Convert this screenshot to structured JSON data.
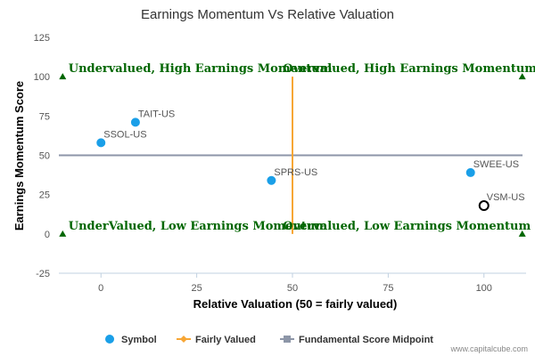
{
  "chart_data": {
    "type": "scatter",
    "title": "Earnings Momentum Vs Relative Valuation",
    "xlabel": "Relative Valuation (50 = fairly valued)",
    "ylabel": "Earnings Momentum Score",
    "xlim": [
      -11,
      111
    ],
    "ylim": [
      -25,
      125
    ],
    "x_ticks": [
      0,
      25,
      50,
      75,
      100
    ],
    "y_ticks": [
      -25,
      0,
      25,
      50,
      75,
      100,
      125
    ],
    "grid": false,
    "legend_position": "bottom",
    "points": [
      {
        "label": "TAIT-US",
        "x": 9,
        "y": 71,
        "style": "filled",
        "label_side": "right"
      },
      {
        "label": "SSOL-US",
        "x": 0,
        "y": 58,
        "style": "filled",
        "label_side": "right"
      },
      {
        "label": "SPRS-US",
        "x": 44.5,
        "y": 34,
        "style": "filled",
        "label_side": "right"
      },
      {
        "label": "SWEE-US",
        "x": 96.5,
        "y": 39,
        "style": "filled",
        "label_side": "right"
      },
      {
        "label": "VSM-US",
        "x": 100,
        "y": 18,
        "style": "hollow",
        "label_side": "right"
      }
    ],
    "fairly_valued_line": {
      "x": 50,
      "y_range": [
        0,
        100
      ]
    },
    "midpoint_line": {
      "y": 50
    },
    "quadrant_labels": {
      "top_left": "Undervalued, High Earnings Momentum",
      "top_right": "Overvalued, High Earnings Momentum",
      "bottom_left": "UnderValued, Low Earnings Momentum",
      "bottom_right": "Overvalued, Low Earnings Momentum"
    },
    "corner_markers": [
      {
        "x": -10,
        "y": 100
      },
      {
        "x": 110,
        "y": 100
      },
      {
        "x": -10,
        "y": 0
      },
      {
        "x": 110,
        "y": 0
      }
    ],
    "legend": [
      {
        "name": "Symbol",
        "kind": "dot"
      },
      {
        "name": "Fairly Valued",
        "kind": "line-diamond"
      },
      {
        "name": "Fundamental Score Midpoint",
        "kind": "line-square"
      }
    ],
    "colors": {
      "symbol": "#1a9fe8",
      "fairly_valued": "#f7a635",
      "midpoint": "#8d96a8",
      "quadrant_text": "#006600",
      "marker": "#006600"
    },
    "credit": "www.capitalcube.com"
  }
}
